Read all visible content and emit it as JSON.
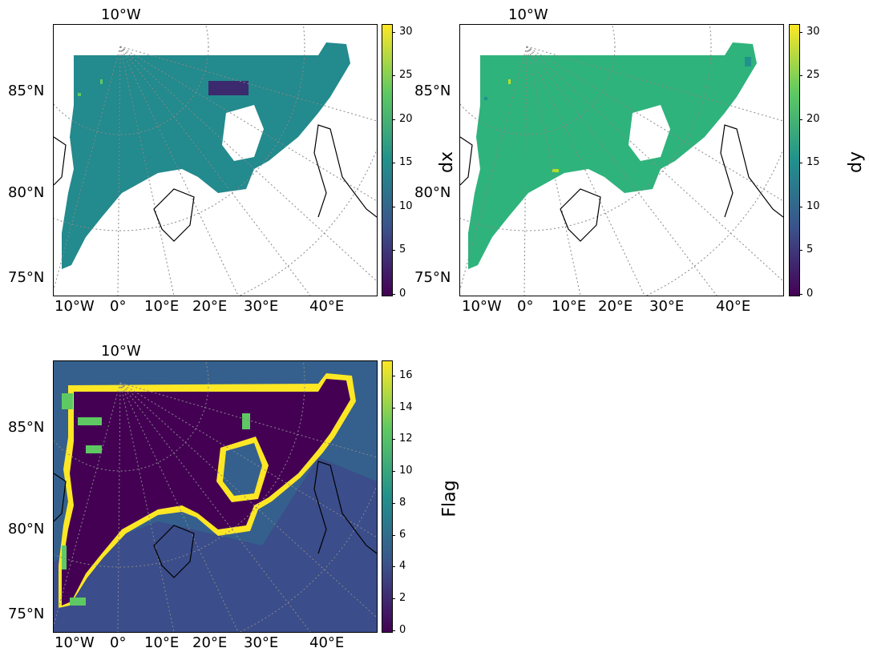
{
  "panels": [
    {
      "name": "dx",
      "top_lon_label": "10°W",
      "lat_labels": [
        "85°N",
        "80°N",
        "75°N"
      ],
      "lon_labels": [
        "10°W",
        "0°",
        "10°E",
        "20°E",
        "30°E",
        "40°E"
      ],
      "colorbar": {
        "label": "dx",
        "min": 0,
        "max": 31,
        "ticks": [
          "0",
          "5",
          "10",
          "15",
          "20",
          "25",
          "30"
        ]
      },
      "field_value": "~16 (teal)",
      "field_color": "#238a8d"
    },
    {
      "name": "dy",
      "top_lon_label": "10°W",
      "lat_labels": [
        "85°N",
        "80°N",
        "75°N"
      ],
      "lon_labels": [
        "10°W",
        "0°",
        "10°E",
        "20°E",
        "30°E",
        "40°E"
      ],
      "colorbar": {
        "label": "dy",
        "min": 0,
        "max": 31,
        "ticks": [
          "0",
          "5",
          "10",
          "15",
          "20",
          "25",
          "30"
        ]
      },
      "field_value": "~20 (green)",
      "field_color": "#2eb37c"
    },
    {
      "name": "Flag",
      "top_lon_label": "10°W",
      "lat_labels": [
        "85°N",
        "80°N",
        "75°N"
      ],
      "lon_labels": [
        "10°W",
        "0°",
        "10°E",
        "20°E",
        "30°E",
        "40°E"
      ],
      "colorbar": {
        "label": "Flag",
        "min": 0,
        "max": 17,
        "ticks": [
          "0",
          "2",
          "4",
          "6",
          "8",
          "10",
          "12",
          "14",
          "16"
        ]
      },
      "field_color": "#440154",
      "boundary_color": "#fde725",
      "ocean_color": "#35608d"
    }
  ],
  "colormap": "viridis"
}
